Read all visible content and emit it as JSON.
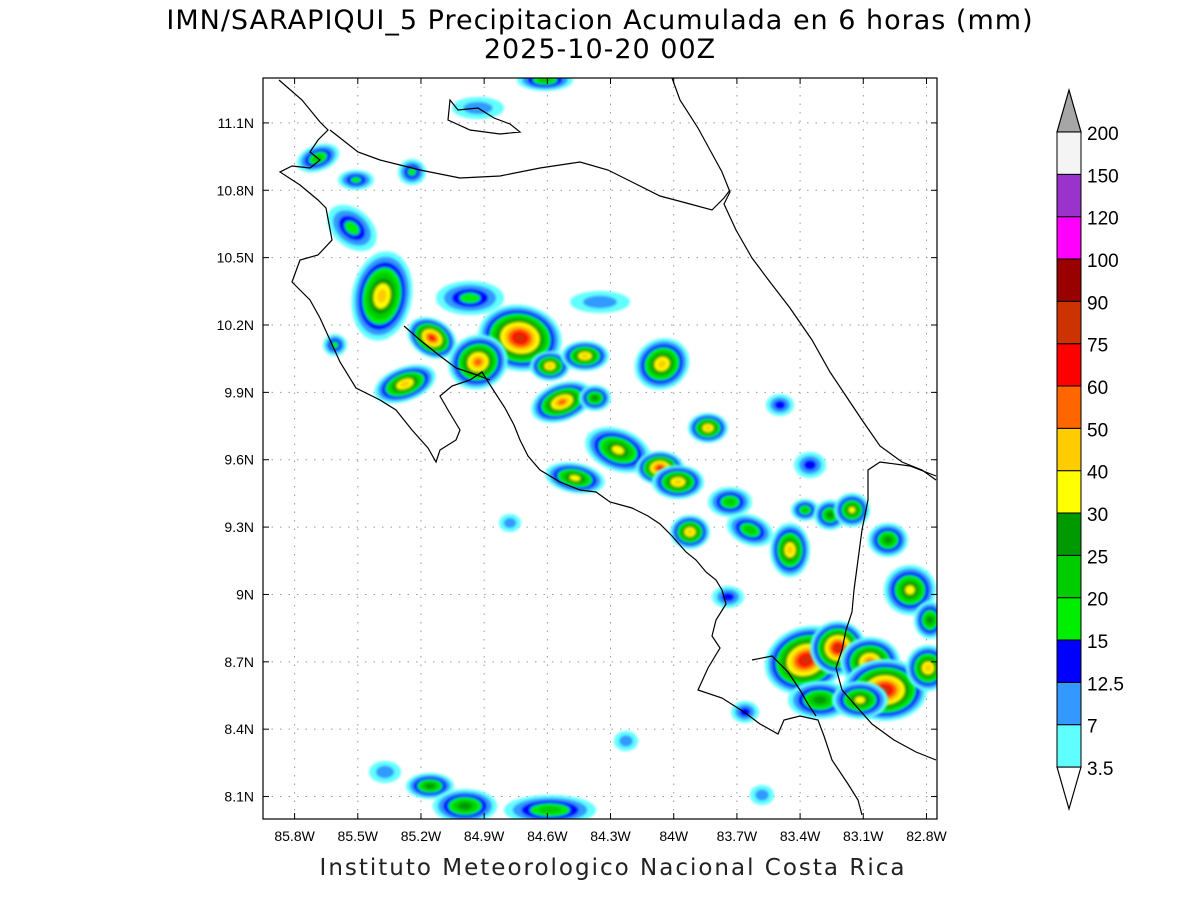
{
  "header": {
    "title": "IMN/SARAPIQUI_5 Precipitacion Acumulada en 6 horas (mm)",
    "subtitle": "2025-10-20 00Z"
  },
  "footer": {
    "credit": "Instituto Meteorologico Nacional Costa Rica"
  },
  "map": {
    "lon_range": [
      -85.95,
      -82.75
    ],
    "lat_range": [
      8.0,
      11.3
    ],
    "x_ticks": [
      "85.8W",
      "85.5W",
      "85.2W",
      "84.9W",
      "84.6W",
      "84.3W",
      "84W",
      "83.7W",
      "83.4W",
      "83.1W",
      "82.8W"
    ],
    "y_ticks": [
      "8.1N",
      "8.4N",
      "8.7N",
      "9N",
      "9.3N",
      "9.6N",
      "9.9N",
      "10.2N",
      "10.5N",
      "10.8N",
      "11.1N"
    ]
  },
  "legend": {
    "levels": [
      "3.5",
      "7",
      "12.5",
      "15",
      "20",
      "25",
      "30",
      "40",
      "50",
      "60",
      "75",
      "90",
      "100",
      "120",
      "150",
      "200"
    ],
    "colors": [
      "#60ffff",
      "#3399ff",
      "#0000ff",
      "#00ee00",
      "#00cc00",
      "#009900",
      "#ffff00",
      "#ffcc00",
      "#ff6600",
      "#ff0000",
      "#cc3300",
      "#990000",
      "#ff00ff",
      "#9933cc",
      "#f4f4f4",
      "#a6a6a6"
    ]
  }
}
